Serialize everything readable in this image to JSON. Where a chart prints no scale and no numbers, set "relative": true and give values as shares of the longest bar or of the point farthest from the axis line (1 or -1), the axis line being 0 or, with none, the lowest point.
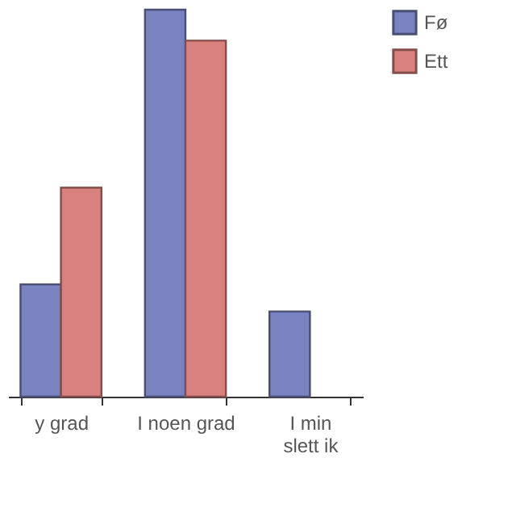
{
  "chart_data": {
    "type": "bar",
    "relative": true,
    "categories": [
      "y grad",
      "I noen grad",
      "I min\nslett ik"
    ],
    "series": [
      {
        "name": "Fø",
        "color": "#7a82c0",
        "values": [
          0.29,
          1,
          0.22
        ]
      },
      {
        "name": "Ett",
        "color": "#d9817e",
        "values": [
          0.54,
          0.92,
          null
        ]
      }
    ],
    "legend": "right",
    "grid": false
  }
}
